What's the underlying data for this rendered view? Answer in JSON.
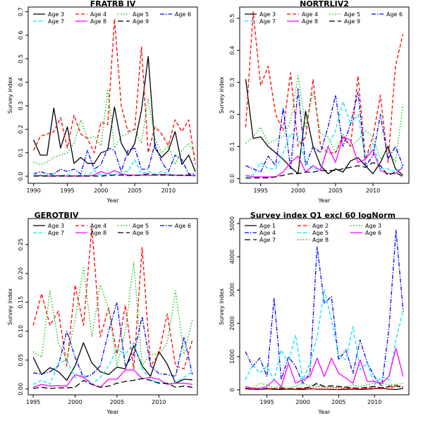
{
  "chart_data": [
    {
      "type": "line",
      "title": "FRATRB IV",
      "xlabel": "Year",
      "ylabel": "Survey index",
      "xlim": [
        1989.2,
        2014.3
      ],
      "ylim": [
        -0.03,
        0.72
      ],
      "xticks": [
        1990,
        1995,
        2000,
        2005,
        2010
      ],
      "yticks": [
        0.0,
        0.1,
        0.2,
        0.3,
        0.4,
        0.5,
        0.6,
        0.7
      ],
      "ytick_labels": [
        "0.0",
        "0.1",
        "0.2",
        "0.3",
        "0.4",
        "0.5",
        "0.6",
        "0.7"
      ],
      "legend_columns": 4,
      "x": [
        1990,
        1991,
        1992,
        1993,
        1994,
        1995,
        1996,
        1997,
        1998,
        1999,
        2000,
        2001,
        2002,
        2003,
        2004,
        2005,
        2006,
        2007,
        2008,
        2009,
        2010,
        2011,
        2012,
        2013,
        2014
      ],
      "series": [
        {
          "name": "Age 3",
          "color": "#000000",
          "dash": "solid",
          "values": [
            0.155,
            0.09,
            0.09,
            0.29,
            0.12,
            0.21,
            0.055,
            0.08,
            0.055,
            0.055,
            0.1,
            0.11,
            0.295,
            0.14,
            0.09,
            0.14,
            0.28,
            0.51,
            0.12,
            0.08,
            0.11,
            0.19,
            0.05,
            0.09,
            0.02
          ]
        },
        {
          "name": "Age 4",
          "color": "#ff0000",
          "dash": "dashed",
          "values": [
            0.11,
            0.17,
            0.18,
            0.19,
            0.25,
            0.12,
            0.26,
            0.18,
            0.16,
            0.1,
            0.23,
            0.22,
            0.67,
            0.3,
            0.19,
            0.2,
            0.55,
            0.1,
            0.21,
            0.18,
            0.13,
            0.24,
            0.19,
            0.24,
            0.05
          ]
        },
        {
          "name": "Age 5",
          "color": "#00bb00",
          "dash": "dotted",
          "values": [
            0.06,
            0.05,
            0.06,
            0.08,
            0.09,
            0.1,
            0.14,
            0.24,
            0.16,
            0.17,
            0.13,
            0.37,
            0.12,
            0.17,
            0.18,
            0.2,
            0.14,
            0.33,
            0.16,
            0.1,
            0.13,
            0.05,
            0.11,
            0.14,
            0.09
          ]
        },
        {
          "name": "Age 6",
          "color": "#0000ff",
          "dash": "dashdot",
          "values": [
            0.01,
            0.02,
            0.01,
            0.01,
            0.03,
            0.02,
            0.03,
            0.01,
            0.11,
            0.03,
            0.05,
            0.12,
            0.11,
            0.02,
            0.11,
            0.12,
            0.03,
            0.03,
            0.14,
            0.06,
            0.02,
            0.09,
            0.07,
            0.01,
            0.01
          ]
        },
        {
          "name": "Age 7",
          "color": "#00e5ff",
          "dash": "dashed",
          "values": [
            0.01,
            0.005,
            0.003,
            0.005,
            0.003,
            0.008,
            0.002,
            0.005,
            0.003,
            0.025,
            0.003,
            0.01,
            0.005,
            0.02,
            0.02,
            0.07,
            0.01,
            0.02,
            0.01,
            0.02,
            0.01,
            0.005,
            0.005,
            0.002,
            0.005
          ]
        },
        {
          "name": "Age 8",
          "color": "#ff00ff",
          "dash": "solid",
          "values": [
            0.002,
            0.002,
            0.001,
            0.001,
            0.002,
            0.001,
            0.001,
            0.001,
            0.001,
            0.005,
            0.02,
            0.01,
            0.025,
            0.01,
            0.005,
            0.005,
            0.005,
            0.003,
            0.005,
            0.008,
            0.005,
            0.005,
            0.003,
            0.003,
            0.002
          ]
        },
        {
          "name": "Age 9",
          "color": "#000000",
          "dash": "longdash",
          "values": [
            0.001,
            0.001,
            0.001,
            0.001,
            0.001,
            0.001,
            0.001,
            0.001,
            0.001,
            0.001,
            0.001,
            0.003,
            0.005,
            0.005,
            0.003,
            0.003,
            0.005,
            0.01,
            0.005,
            0.005,
            0.005,
            0.003,
            0.005,
            0.005,
            0.002
          ]
        }
      ]
    },
    {
      "type": "line",
      "title": "NORTRLIV2",
      "xlabel": "Year",
      "ylabel": "Survey index",
      "xlim": [
        1992.2,
        2014.8
      ],
      "ylim": [
        -0.015,
        0.535
      ],
      "xticks": [
        1995,
        2000,
        2005,
        2010
      ],
      "yticks": [
        0.0,
        0.1,
        0.2,
        0.3,
        0.4,
        0.5
      ],
      "ytick_labels": [
        "0.0",
        "0.1",
        "0.2",
        "0.3",
        "0.4",
        "0.5"
      ],
      "legend_columns": 4,
      "x": [
        1993,
        1994,
        1995,
        1996,
        1997,
        1998,
        1999,
        2000,
        2001,
        2002,
        2003,
        2004,
        2005,
        2006,
        2007,
        2008,
        2009,
        2010,
        2011,
        2012,
        2013,
        2014
      ],
      "series": [
        {
          "name": "Age 3",
          "color": "#000000",
          "dash": "solid",
          "values": [
            0.31,
            0.125,
            0.13,
            0.1,
            0.08,
            0.06,
            0.035,
            0.015,
            0.21,
            0.1,
            0.04,
            0.015,
            0.03,
            0.02,
            0.055,
            0.065,
            0.04,
            0.015,
            0.05,
            0.1,
            0.03,
            0.01
          ]
        },
        {
          "name": "Age 4",
          "color": "#ff0000",
          "dash": "dashed",
          "values": [
            0.16,
            0.52,
            0.29,
            0.35,
            0.2,
            0.15,
            0.33,
            0.1,
            0.13,
            0.31,
            0.1,
            0.08,
            0.08,
            0.13,
            0.1,
            0.32,
            0.06,
            0.13,
            0.26,
            0.05,
            0.35,
            0.45
          ]
        },
        {
          "name": "Age 5",
          "color": "#00bb00",
          "dash": "dotted",
          "values": [
            0.11,
            0.13,
            0.16,
            0.11,
            0.12,
            0.13,
            0.18,
            0.32,
            0.16,
            0.27,
            0.14,
            0.13,
            0.08,
            0.14,
            0.1,
            0.12,
            0.15,
            0.13,
            0.06,
            0.09,
            0.05,
            0.23
          ]
        },
        {
          "name": "Age 6",
          "color": "#0000ff",
          "dash": "dashdot",
          "values": [
            0.04,
            0.03,
            0.02,
            0.07,
            0.04,
            0.22,
            0.03,
            0.28,
            0.04,
            0.1,
            0.08,
            0.16,
            0.26,
            0.1,
            0.17,
            0.27,
            0.04,
            0.07,
            0.2,
            0.06,
            0.1,
            0.04
          ]
        },
        {
          "name": "Age 7",
          "color": "#00e5ff",
          "dash": "dashed",
          "values": [
            0.005,
            0.01,
            0.05,
            0.03,
            0.03,
            0.08,
            0.14,
            0.13,
            0.05,
            0.03,
            0.03,
            0.1,
            0.15,
            0.24,
            0.17,
            0.2,
            0.06,
            0.11,
            0.03,
            0.03,
            0.02,
            0.04
          ]
        },
        {
          "name": "Age 8",
          "color": "#ff00ff",
          "dash": "solid",
          "values": [
            0.01,
            0.005,
            0.005,
            0.005,
            0.005,
            0.02,
            0.05,
            0.07,
            0.02,
            0.04,
            0.025,
            0.1,
            0.05,
            0.13,
            0.12,
            0.05,
            0.06,
            0.09,
            0.025,
            0.015,
            0.015,
            0.035
          ]
        },
        {
          "name": "Age 9",
          "color": "#000000",
          "dash": "longdash",
          "values": [
            0.001,
            0.002,
            0.002,
            0.002,
            0.005,
            0.01,
            0.015,
            0.015,
            0.02,
            0.02,
            0.025,
            0.025,
            0.025,
            0.03,
            0.035,
            0.04,
            0.035,
            0.05,
            0.04,
            0.01,
            0.02,
            0.005
          ]
        }
      ]
    },
    {
      "type": "line",
      "title": "GEROTBIV",
      "xlabel": "Year",
      "ylabel": "Survey index",
      "xlim": [
        1994.4,
        2014.6
      ],
      "ylim": [
        -0.01,
        0.295
      ],
      "xticks": [
        1995,
        2000,
        2005,
        2010
      ],
      "yticks": [
        0.0,
        0.05,
        0.1,
        0.15,
        0.2,
        0.25
      ],
      "ytick_labels": [
        "0.00",
        "0.05",
        "0.10",
        "0.15",
        "0.20",
        "0.25"
      ],
      "legend_columns": 4,
      "x": [
        1995,
        1996,
        1997,
        1998,
        1999,
        2000,
        2001,
        2002,
        2003,
        2004,
        2005,
        2006,
        2007,
        2008,
        2009,
        2010,
        2011,
        2012,
        2013,
        2014
      ],
      "series": [
        {
          "name": "Age 3",
          "color": "#000000",
          "dash": "solid",
          "values": [
            0.055,
            0.025,
            0.037,
            0.03,
            0.015,
            0.04,
            0.08,
            0.045,
            0.03,
            0.025,
            0.038,
            0.035,
            0.075,
            0.04,
            0.022,
            0.065,
            0.043,
            0.01,
            0.017,
            0.016
          ]
        },
        {
          "name": "Age 4",
          "color": "#ff0000",
          "dash": "dashed",
          "values": [
            0.11,
            0.165,
            0.11,
            0.135,
            0.04,
            0.18,
            0.11,
            0.28,
            0.09,
            0.14,
            0.06,
            0.145,
            0.035,
            0.245,
            0.04,
            0.06,
            0.13,
            0.04,
            0.035,
            0.085
          ]
        },
        {
          "name": "Age 5",
          "color": "#00bb00",
          "dash": "dotted",
          "values": [
            0.065,
            0.055,
            0.17,
            0.08,
            0.05,
            0.12,
            0.21,
            0.09,
            0.18,
            0.14,
            0.04,
            0.1,
            0.22,
            0.04,
            0.06,
            0.06,
            0.08,
            0.17,
            0.06,
            0.12
          ]
        },
        {
          "name": "Age 6",
          "color": "#0000ff",
          "dash": "dashdot",
          "values": [
            0.028,
            0.026,
            0.03,
            0.04,
            0.1,
            0.055,
            0.02,
            0.025,
            0.04,
            0.1,
            0.15,
            0.04,
            0.06,
            0.125,
            0.04,
            0.027,
            0.025,
            0.022,
            0.09,
            0.025
          ]
        },
        {
          "name": "Age 7",
          "color": "#00e5ff",
          "dash": "dashed",
          "values": [
            0.008,
            0.015,
            0.008,
            0.045,
            0.05,
            0.02,
            0.025,
            0.008,
            0.02,
            0.04,
            0.07,
            0.06,
            0.08,
            0.035,
            0.015,
            0.012,
            0.008,
            0.012,
            0.02,
            0.03
          ]
        },
        {
          "name": "Age 8",
          "color": "#ff00ff",
          "dash": "solid",
          "values": [
            0.003,
            0.008,
            0.005,
            0.006,
            0.005,
            0.025,
            0.02,
            0.008,
            0.003,
            0.017,
            0.017,
            0.033,
            0.033,
            0.018,
            0.02,
            0.017,
            0.008,
            0.01,
            0.01,
            0.008
          ]
        },
        {
          "name": "Age 9",
          "color": "#000000",
          "dash": "longdash",
          "values": [
            0.001,
            0.003,
            0.001,
            0.002,
            0.002,
            0.003,
            0.015,
            0.008,
            0.003,
            0.005,
            0.01,
            0.013,
            0.015,
            0.018,
            0.015,
            0.01,
            0.01,
            0.003,
            0.005,
            0.003
          ]
        }
      ]
    },
    {
      "type": "line",
      "title": "Survey index Q1 excl 60 logNorm",
      "xlabel": "Year",
      "ylabel": "Survey index",
      "xlim": [
        1991.2,
        2014.8
      ],
      "ylim": [
        -150,
        5150
      ],
      "xticks": [
        1995,
        2000,
        2005,
        2010
      ],
      "yticks": [
        0,
        1000,
        2000,
        3000,
        4000,
        5000
      ],
      "ytick_labels": [
        "0",
        "1000",
        "2000",
        "3000",
        "4000",
        "5000"
      ],
      "legend_columns": 3,
      "x": [
        1992,
        1993,
        1994,
        1995,
        1996,
        1997,
        1998,
        1999,
        2000,
        2001,
        2002,
        2003,
        2004,
        2005,
        2006,
        2007,
        2008,
        2009,
        2010,
        2011,
        2012,
        2013,
        2014
      ],
      "series": [
        {
          "name": "Age 1",
          "color": "#000000",
          "dash": "solid",
          "values": [
            50,
            20,
            10,
            30,
            15,
            10,
            20,
            10,
            10,
            30,
            20,
            15,
            10,
            10,
            15,
            20,
            10,
            20,
            30,
            40,
            20,
            10,
            40
          ]
        },
        {
          "name": "Age 2",
          "color": "#ff0000",
          "dash": "dashed",
          "values": [
            30,
            20,
            10,
            50,
            20,
            30,
            20,
            10,
            40,
            20,
            30,
            20,
            20,
            10,
            40,
            30,
            20,
            40,
            40,
            40,
            30,
            120,
            80
          ]
        },
        {
          "name": "Age 3",
          "color": "#00bb00",
          "dash": "dotted",
          "values": [
            100,
            50,
            200,
            150,
            60,
            100,
            50,
            100,
            200,
            100,
            150,
            80,
            100,
            50,
            100,
            150,
            100,
            150,
            200,
            200,
            150,
            150,
            200
          ]
        },
        {
          "name": "Age 4",
          "color": "#0000ff",
          "dash": "dashdot",
          "values": [
            1150,
            700,
            950,
            400,
            2750,
            300,
            1000,
            700,
            200,
            500,
            4300,
            2600,
            2800,
            900,
            1200,
            500,
            1500,
            800,
            400,
            100,
            1800,
            4800,
            2350
          ]
        },
        {
          "name": "Age 5",
          "color": "#00e5ff",
          "dash": "dashed",
          "values": [
            300,
            750,
            500,
            700,
            300,
            1200,
            800,
            1650,
            300,
            800,
            1600,
            3000,
            2100,
            1050,
            900,
            1900,
            600,
            800,
            150,
            400,
            300,
            1500,
            2400
          ]
        },
        {
          "name": "Age 6",
          "color": "#ff00ff",
          "dash": "solid",
          "values": [
            100,
            50,
            50,
            100,
            300,
            100,
            800,
            200,
            300,
            400,
            950,
            400,
            950,
            500,
            350,
            200,
            900,
            250,
            250,
            200,
            400,
            1250,
            400
          ]
        },
        {
          "name": "Age 7",
          "color": "#000000",
          "dash": "longdash",
          "values": [
            50,
            10,
            20,
            40,
            30,
            60,
            30,
            40,
            50,
            80,
            200,
            100,
            120,
            100,
            80,
            60,
            40,
            80,
            100,
            60,
            100,
            120,
            60
          ]
        },
        {
          "name": "Age 8",
          "color": "#ff0000",
          "dash": "dotted",
          "values": [
            20,
            10,
            10,
            20,
            30,
            40,
            20,
            30,
            40,
            50,
            100,
            80,
            60,
            80,
            60,
            40,
            30,
            60,
            80,
            40,
            80,
            150,
            80
          ]
        }
      ]
    }
  ]
}
